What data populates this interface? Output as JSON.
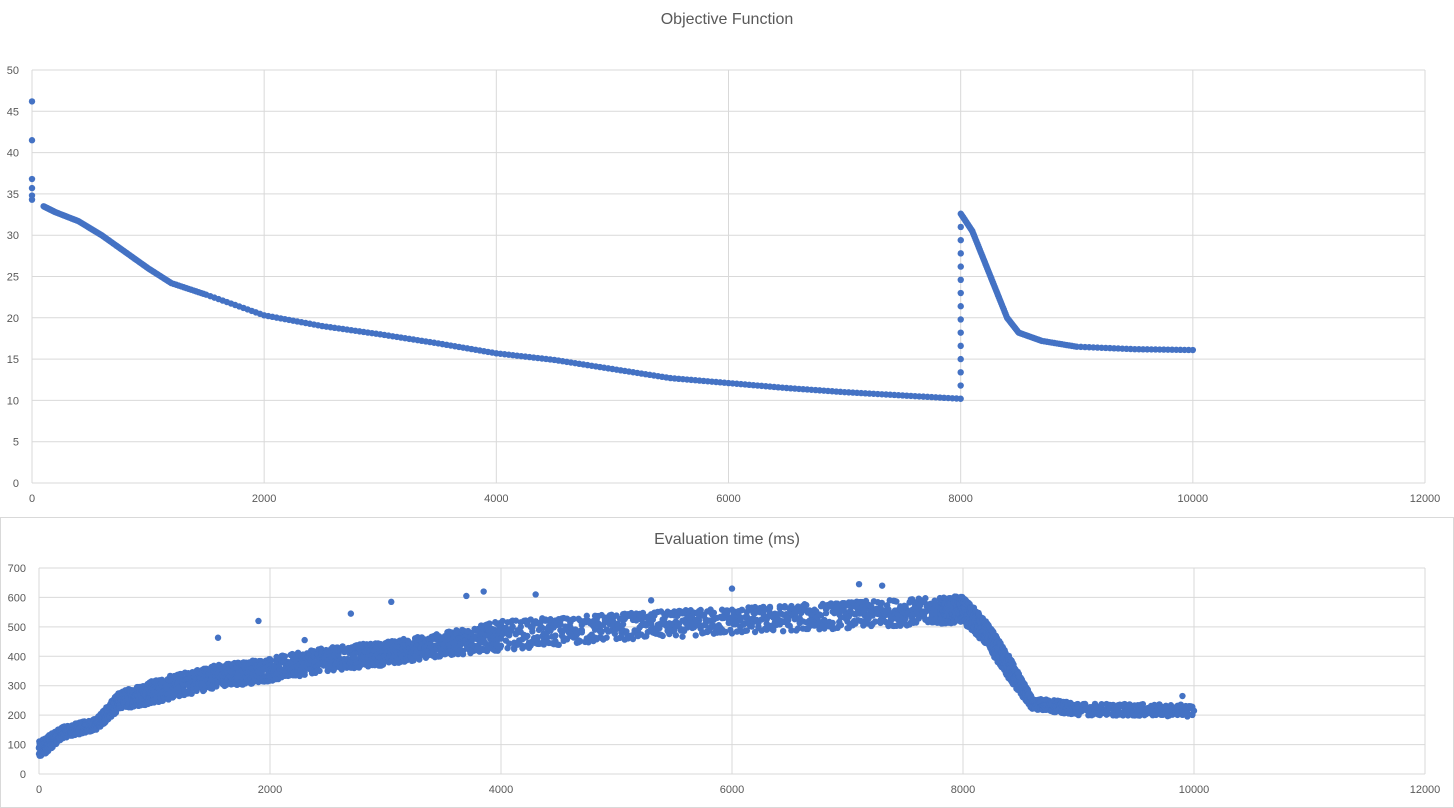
{
  "colors": {
    "series": "#4472c4",
    "grid": "#d9d9d9",
    "text": "#595959"
  },
  "chart_data": [
    {
      "type": "scatter",
      "title": "Objective Function",
      "xlabel": "",
      "ylabel": "",
      "xlim": [
        0,
        12000
      ],
      "ylim": [
        0,
        50
      ],
      "x_ticks": [
        0,
        2000,
        4000,
        6000,
        8000,
        10000,
        12000
      ],
      "y_ticks": [
        0,
        5,
        10,
        15,
        20,
        25,
        30,
        35,
        40,
        45,
        50
      ],
      "grid": true,
      "series": [
        {
          "points": [
            [
              0,
              46.2
            ],
            [
              0,
              41.5
            ],
            [
              0,
              36.8
            ],
            [
              0,
              35.7
            ],
            [
              0,
              34.8
            ],
            [
              0,
              34.3
            ],
            [
              100,
              33.5
            ],
            [
              200,
              32.8
            ],
            [
              400,
              31.7
            ],
            [
              600,
              30.0
            ],
            [
              800,
              28.0
            ],
            [
              1000,
              26.0
            ],
            [
              1200,
              24.2
            ],
            [
              1500,
              22.8
            ],
            [
              2000,
              20.3
            ],
            [
              2500,
              19.0
            ],
            [
              3000,
              18.0
            ],
            [
              3500,
              16.9
            ],
            [
              4000,
              15.7
            ],
            [
              4500,
              14.9
            ],
            [
              5000,
              13.8
            ],
            [
              5500,
              12.7
            ],
            [
              6000,
              12.1
            ],
            [
              6500,
              11.5
            ],
            [
              7000,
              11.0
            ],
            [
              7500,
              10.6
            ],
            [
              8000,
              10.2
            ],
            [
              8001,
              32.6
            ],
            [
              8100,
              30.5
            ],
            [
              8200,
              27.0
            ],
            [
              8300,
              23.5
            ],
            [
              8400,
              20.0
            ],
            [
              8500,
              18.2
            ],
            [
              8700,
              17.2
            ],
            [
              9000,
              16.5
            ],
            [
              9500,
              16.2
            ],
            [
              10000,
              16.1
            ]
          ]
        }
      ]
    },
    {
      "type": "scatter",
      "title": "Evaluation time (ms)",
      "xlabel": "",
      "ylabel": "",
      "xlim": [
        0,
        12000
      ],
      "ylim": [
        0,
        700
      ],
      "x_ticks": [
        0,
        2000,
        4000,
        6000,
        8000,
        10000,
        12000
      ],
      "y_ticks": [
        0,
        100,
        200,
        300,
        400,
        500,
        600,
        700
      ],
      "grid": true,
      "series": [
        {
          "band": [
            [
              0,
              80,
              30
            ],
            [
              200,
              140,
              20
            ],
            [
              500,
              170,
              20
            ],
            [
              700,
              250,
              30
            ],
            [
              1000,
              280,
              40
            ],
            [
              1500,
              330,
              40
            ],
            [
              2000,
              355,
              40
            ],
            [
              2500,
              390,
              40
            ],
            [
              3000,
              410,
              40
            ],
            [
              3500,
              440,
              40
            ],
            [
              4000,
              470,
              50
            ],
            [
              5000,
              500,
              45
            ],
            [
              6000,
              520,
              45
            ],
            [
              7000,
              540,
              45
            ],
            [
              7800,
              555,
              45
            ],
            [
              8000,
              560,
              45
            ],
            [
              8200,
              480,
              40
            ],
            [
              8400,
              360,
              40
            ],
            [
              8600,
              240,
              20
            ],
            [
              9000,
              220,
              20
            ],
            [
              10000,
              215,
              20
            ]
          ],
          "outliers": [
            [
              1550,
              463
            ],
            [
              1900,
              520
            ],
            [
              2300,
              455
            ],
            [
              2700,
              545
            ],
            [
              3050,
              585
            ],
            [
              3700,
              605
            ],
            [
              3850,
              620
            ],
            [
              4300,
              610
            ],
            [
              5300,
              590
            ],
            [
              6000,
              630
            ],
            [
              7100,
              645
            ],
            [
              7300,
              640
            ],
            [
              9900,
              265
            ]
          ]
        }
      ]
    }
  ]
}
